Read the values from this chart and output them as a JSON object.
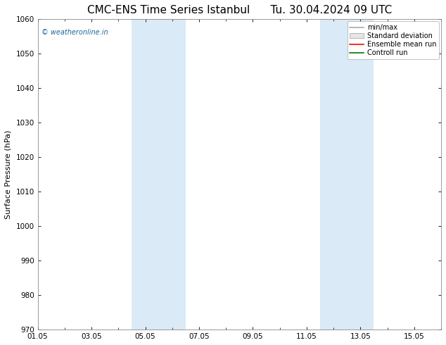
{
  "title": "CMC-ENS Time Series Istanbul",
  "title2": "Tu. 30.04.2024 09 UTC",
  "ylabel": "Surface Pressure (hPa)",
  "ylim": [
    970,
    1060
  ],
  "yticks": [
    970,
    980,
    990,
    1000,
    1010,
    1020,
    1030,
    1040,
    1050,
    1060
  ],
  "xlim": [
    0,
    15
  ],
  "xtick_labels": [
    "01.05",
    "03.05",
    "05.05",
    "07.05",
    "09.05",
    "11.05",
    "13.05",
    "15.05"
  ],
  "xtick_positions": [
    0,
    2,
    4,
    6,
    8,
    10,
    12,
    14
  ],
  "shaded_bands": [
    {
      "x_start": 3.5,
      "x_end": 4.5
    },
    {
      "x_start": 4.5,
      "x_end": 5.5
    },
    {
      "x_start": 10.5,
      "x_end": 11.5
    },
    {
      "x_start": 11.5,
      "x_end": 12.5
    }
  ],
  "shade_color": "#daeaf6",
  "watermark": "© weatheronline.in",
  "watermark_color": "#1a6699",
  "legend_items": [
    {
      "label": "min/max",
      "color": "#aaaaaa",
      "style": "line"
    },
    {
      "label": "Standard deviation",
      "color": "#cccccc",
      "style": "box"
    },
    {
      "label": "Ensemble mean run",
      "color": "#ff0000",
      "style": "line"
    },
    {
      "label": "Controll run",
      "color": "#007700",
      "style": "line"
    }
  ],
  "background_color": "#ffffff",
  "grid_color": "#dddddd",
  "title_fontsize": 11,
  "axis_fontsize": 8,
  "tick_fontsize": 7.5,
  "legend_fontsize": 7
}
